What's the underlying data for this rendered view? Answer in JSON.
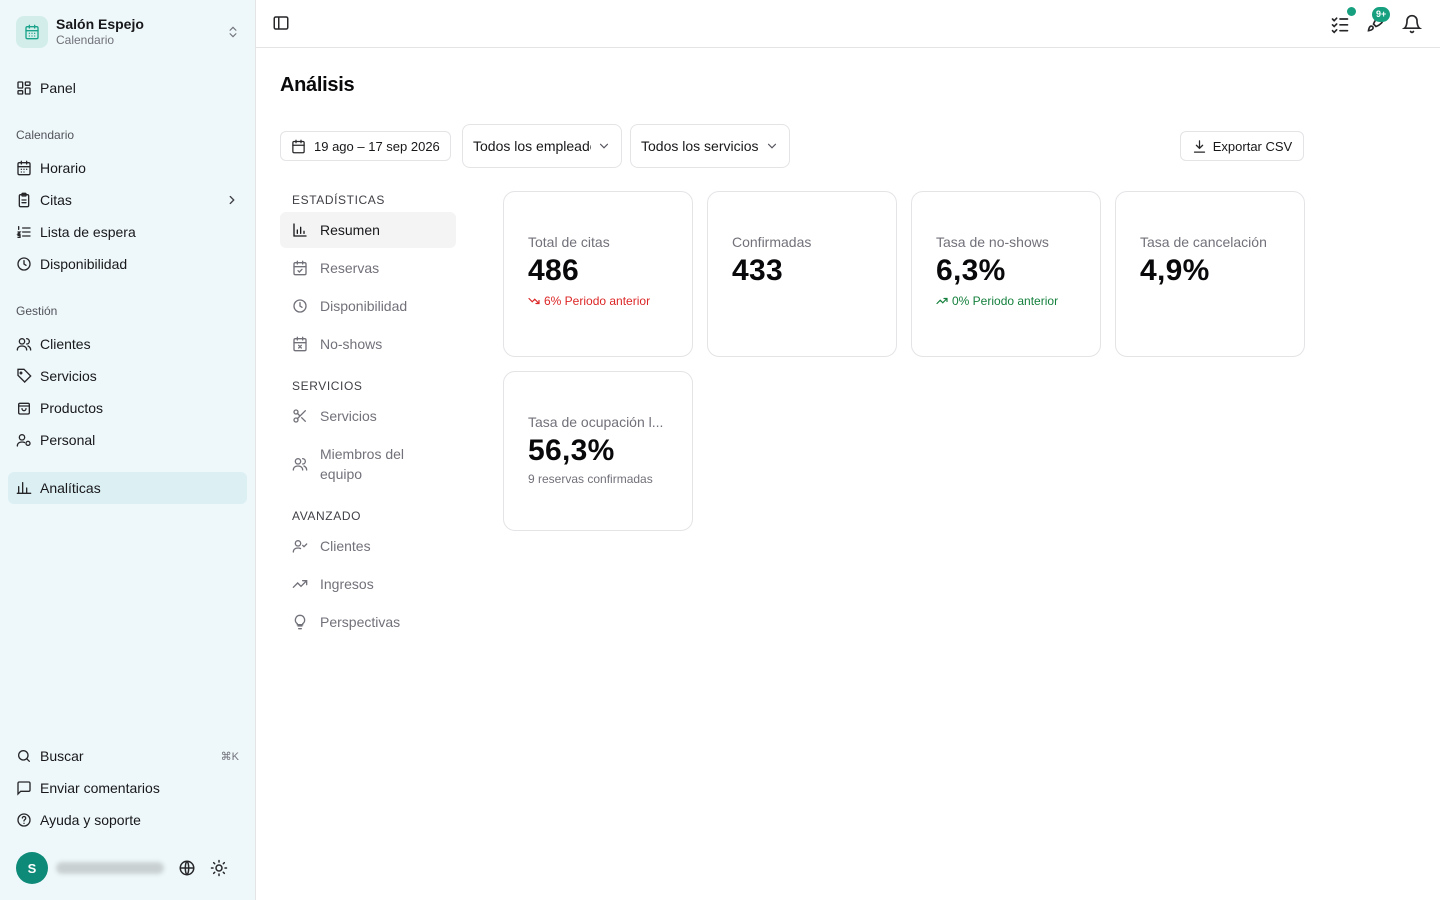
{
  "brand": {
    "name": "Salón Espejo",
    "subtitle": "Calendario",
    "accent": "#1aa38a"
  },
  "sidebar": {
    "panel": "Panel",
    "group_calendar": "Calendario",
    "calendar_items": [
      "Horario",
      "Citas",
      "Lista de espera",
      "Disponibilidad"
    ],
    "group_management": "Gestión",
    "management_items": [
      "Clientes",
      "Servicios",
      "Productos",
      "Personal"
    ],
    "analytics": "Analíticas",
    "footer": {
      "search": "Buscar",
      "search_shortcut": "⌘K",
      "feedback": "Enviar comentarios",
      "help": "Ayuda y soporte"
    },
    "user": {
      "initial": "S"
    }
  },
  "header": {
    "notifications_badge": "9+"
  },
  "page": {
    "title": "Análisis",
    "date_range": "19 ago – 17 sep 2026",
    "employee_filter": "Todos los empleados",
    "service_filter": "Todos los servicios",
    "export_label": "Exportar CSV"
  },
  "subnav": {
    "group_stats": "ESTADÍSTICAS",
    "stats": [
      "Resumen",
      "Reservas",
      "Disponibilidad",
      "No-shows"
    ],
    "group_services": "SERVICIOS",
    "services": [
      "Servicios",
      "Miembros del equipo"
    ],
    "group_advanced": "AVANZADO",
    "advanced": [
      "Clientes",
      "Ingresos",
      "Perspectivas"
    ]
  },
  "cards": [
    {
      "label": "Total de citas",
      "value": "486",
      "trend": "6% Periodo anterior",
      "trend_direction": "down"
    },
    {
      "label": "Confirmadas",
      "value": "433"
    },
    {
      "label": "Tasa de no-shows",
      "value": "6,3%",
      "trend": "0% Periodo anterior",
      "trend_direction": "up"
    },
    {
      "label": "Tasa de cancelación",
      "value": "4,9%"
    },
    {
      "label": "Tasa de ocupación l...",
      "value": "56,3%",
      "note": "9 reservas confirmadas"
    }
  ],
  "colors": {
    "sidebar_bg": "#eef8fa",
    "trend_down": "#dc2626",
    "trend_up": "#15803d",
    "badge": "#16a07f"
  }
}
